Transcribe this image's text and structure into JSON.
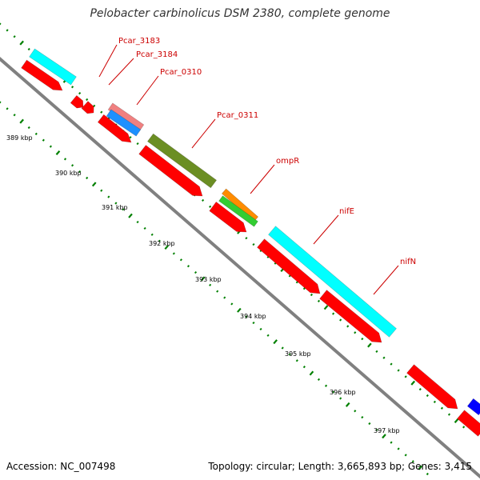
{
  "title": "Pelobacter carbinolicus DSM 2380, complete genome",
  "accession": "Accession: NC_007498",
  "topology": "Topology: circular; Length: 3,665,893 bp; Genes: 3,415",
  "colors": {
    "backbone": "#808080",
    "cds": "#ff0000",
    "cyan_feature": "#00ffff",
    "pink_feature": "#f08080",
    "blue_feature": "#1e90ff",
    "olive_feature": "#6b8e23",
    "orange_feature": "#ff8c00",
    "green_feature": "#32cd32",
    "dark_blue_feature": "#0000ff",
    "tick": "#008000",
    "gene_label": "#cc0000"
  },
  "gene_labels": [
    "Pcar_3183",
    "Pcar_3184",
    "Pcar_0310",
    "Pcar_0311",
    "ompR",
    "nifE",
    "nifN"
  ],
  "kbp_labels": [
    "389 kbp",
    "390 kbp",
    "391 kbp",
    "392 kbp",
    "393 kbp",
    "394 kbp",
    "395 kbp",
    "396 kbp",
    "397 kbp"
  ]
}
